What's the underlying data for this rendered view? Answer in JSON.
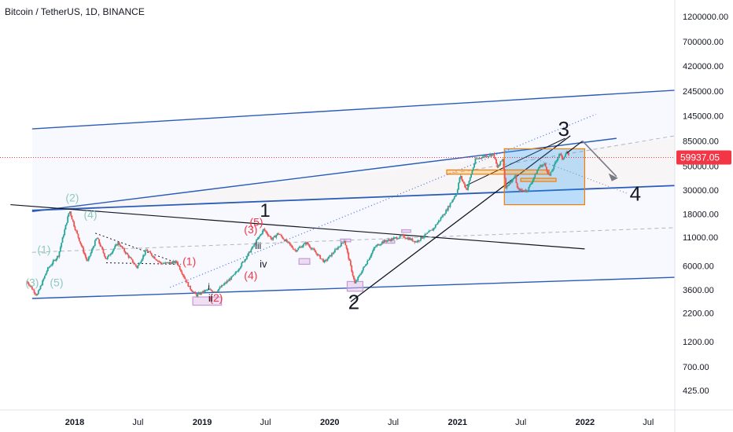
{
  "chart_data": {
    "type": "candlestick",
    "title": "Bitcoin / TetherUS, 1D, BINANCE",
    "y_scale": "log",
    "ylim": [
      300,
      1700000
    ],
    "x_range": [
      "2017-06-01",
      "2022-09-15"
    ],
    "y_ticks": [
      1200000,
      700000,
      420000,
      245000,
      145000,
      85000,
      50000,
      30000,
      18000,
      11000,
      6000,
      3600,
      2200,
      1200,
      700,
      425
    ],
    "y_tick_labels": [
      "1200000.00",
      "700000.00",
      "420000.00",
      "245000.00",
      "145000.00",
      "85000.00",
      "50000.00",
      "30000.00",
      "18000.00",
      "11000.00",
      "6000.00",
      "3600.00",
      "2200.00",
      "1200.00",
      "700.00",
      "425.00"
    ],
    "x_ticks": [
      {
        "label": "2018",
        "date": "2018-01-01",
        "bold": true
      },
      {
        "label": "Jul",
        "date": "2018-07-01",
        "bold": false
      },
      {
        "label": "2019",
        "date": "2019-01-01",
        "bold": true
      },
      {
        "label": "Jul",
        "date": "2019-07-01",
        "bold": false
      },
      {
        "label": "2020",
        "date": "2020-01-01",
        "bold": true
      },
      {
        "label": "Jul",
        "date": "2020-07-01",
        "bold": false
      },
      {
        "label": "2021",
        "date": "2021-01-01",
        "bold": true
      },
      {
        "label": "Jul",
        "date": "2021-07-01",
        "bold": false
      },
      {
        "label": "2022",
        "date": "2022-01-01",
        "bold": true
      },
      {
        "label": "Jul",
        "date": "2022-07-01",
        "bold": false
      }
    ],
    "current_price": {
      "value": 59937.05,
      "label": "59937.05",
      "color": "#f23645"
    },
    "price_path": [
      [
        "2017-08-17",
        4300
      ],
      [
        "2017-09-15",
        3200
      ],
      [
        "2017-10-15",
        5600
      ],
      [
        "2017-11-15",
        7500
      ],
      [
        "2017-12-17",
        19500
      ],
      [
        "2018-01-01",
        13500
      ],
      [
        "2018-02-06",
        6500
      ],
      [
        "2018-03-05",
        11000
      ],
      [
        "2018-04-01",
        6900
      ],
      [
        "2018-05-05",
        9800
      ],
      [
        "2018-06-28",
        5800
      ],
      [
        "2018-07-25",
        8400
      ],
      [
        "2018-09-05",
        6300
      ],
      [
        "2018-10-20",
        6500
      ],
      [
        "2018-11-25",
        3800
      ],
      [
        "2018-12-15",
        3200
      ],
      [
        "2019-01-15",
        3600
      ],
      [
        "2019-02-10",
        3500
      ],
      [
        "2019-04-02",
        4900
      ],
      [
        "2019-05-15",
        7900
      ],
      [
        "2019-06-26",
        13000
      ],
      [
        "2019-07-20",
        10500
      ],
      [
        "2019-08-06",
        12000
      ],
      [
        "2019-09-25",
        8300
      ],
      [
        "2019-10-26",
        9800
      ],
      [
        "2019-12-17",
        6500
      ],
      [
        "2020-02-12",
        10300
      ],
      [
        "2020-03-13",
        4100
      ],
      [
        "2020-05-10",
        9000
      ],
      [
        "2020-06-01",
        10000
      ],
      [
        "2020-07-27",
        11300
      ],
      [
        "2020-09-05",
        10000
      ],
      [
        "2020-10-21",
        12900
      ],
      [
        "2020-11-30",
        19500
      ],
      [
        "2020-12-31",
        29000
      ],
      [
        "2021-01-08",
        41000
      ],
      [
        "2021-01-27",
        30000
      ],
      [
        "2021-02-21",
        57000
      ],
      [
        "2021-03-13",
        61000
      ],
      [
        "2021-04-14",
        64500
      ],
      [
        "2021-04-25",
        48000
      ],
      [
        "2021-05-10",
        58000
      ],
      [
        "2021-05-19",
        32000
      ],
      [
        "2021-06-15",
        40000
      ],
      [
        "2021-06-22",
        30000
      ],
      [
        "2021-07-20",
        29800
      ],
      [
        "2021-08-23",
        49500
      ],
      [
        "2021-09-07",
        52000
      ],
      [
        "2021-09-21",
        40000
      ],
      [
        "2021-10-20",
        66000
      ],
      [
        "2021-10-28",
        58000
      ],
      [
        "2021-11-10",
        68000
      ],
      [
        "2021-11-16",
        59937
      ]
    ],
    "wave_labels": [
      {
        "text": "(2)",
        "date": "2017-12-25",
        "price": 23500,
        "color": "#8ec9bd",
        "size": 14
      },
      {
        "text": "(4)",
        "date": "2018-02-15",
        "price": 16500,
        "color": "#8ec9bd",
        "size": 14
      },
      {
        "text": "(1)",
        "date": "2017-10-05",
        "price": 7800,
        "color": "#8ec9bd",
        "size": 14
      },
      {
        "text": "(3)",
        "date": "2017-09-01",
        "price": 3900,
        "color": "#8ec9bd",
        "size": 14
      },
      {
        "text": "(5)",
        "date": "2017-11-10",
        "price": 3900,
        "color": "#8ec9bd",
        "size": 14
      },
      {
        "text": "(1)",
        "date": "2018-11-25",
        "price": 6100,
        "color": "#f23645",
        "size": 14
      },
      {
        "text": "(2)",
        "date": "2019-02-10",
        "price": 2800,
        "color": "#f23645",
        "size": 14
      },
      {
        "text": "(3)",
        "date": "2019-05-20",
        "price": 12000,
        "color": "#f23645",
        "size": 14
      },
      {
        "text": "(4)",
        "date": "2019-05-20",
        "price": 4500,
        "color": "#f23645",
        "size": 14
      },
      {
        "text": "(5)",
        "date": "2019-06-05",
        "price": 14000,
        "color": "#f23645",
        "size": 14
      },
      {
        "text": "i",
        "date": "2019-01-20",
        "price": 3600,
        "color": "#131722",
        "size": 12
      },
      {
        "text": "ii",
        "date": "2019-01-25",
        "price": 2800,
        "color": "#131722",
        "size": 13
      },
      {
        "text": "iii",
        "date": "2019-06-10",
        "price": 8600,
        "color": "#131722",
        "size": 12
      },
      {
        "text": "iv",
        "date": "2019-06-25",
        "price": 5800,
        "color": "#131722",
        "size": 13
      },
      {
        "text": "1",
        "date": "2019-06-30",
        "price": 17000,
        "color": "#131722",
        "size": 24
      },
      {
        "text": "2",
        "date": "2020-03-10",
        "price": 2400,
        "color": "#131722",
        "size": 26
      },
      {
        "text": "3",
        "date": "2021-11-01",
        "price": 95000,
        "color": "#131722",
        "size": 26
      },
      {
        "text": "4",
        "date": "2022-05-25",
        "price": 24000,
        "color": "#131722",
        "size": 26
      }
    ]
  }
}
